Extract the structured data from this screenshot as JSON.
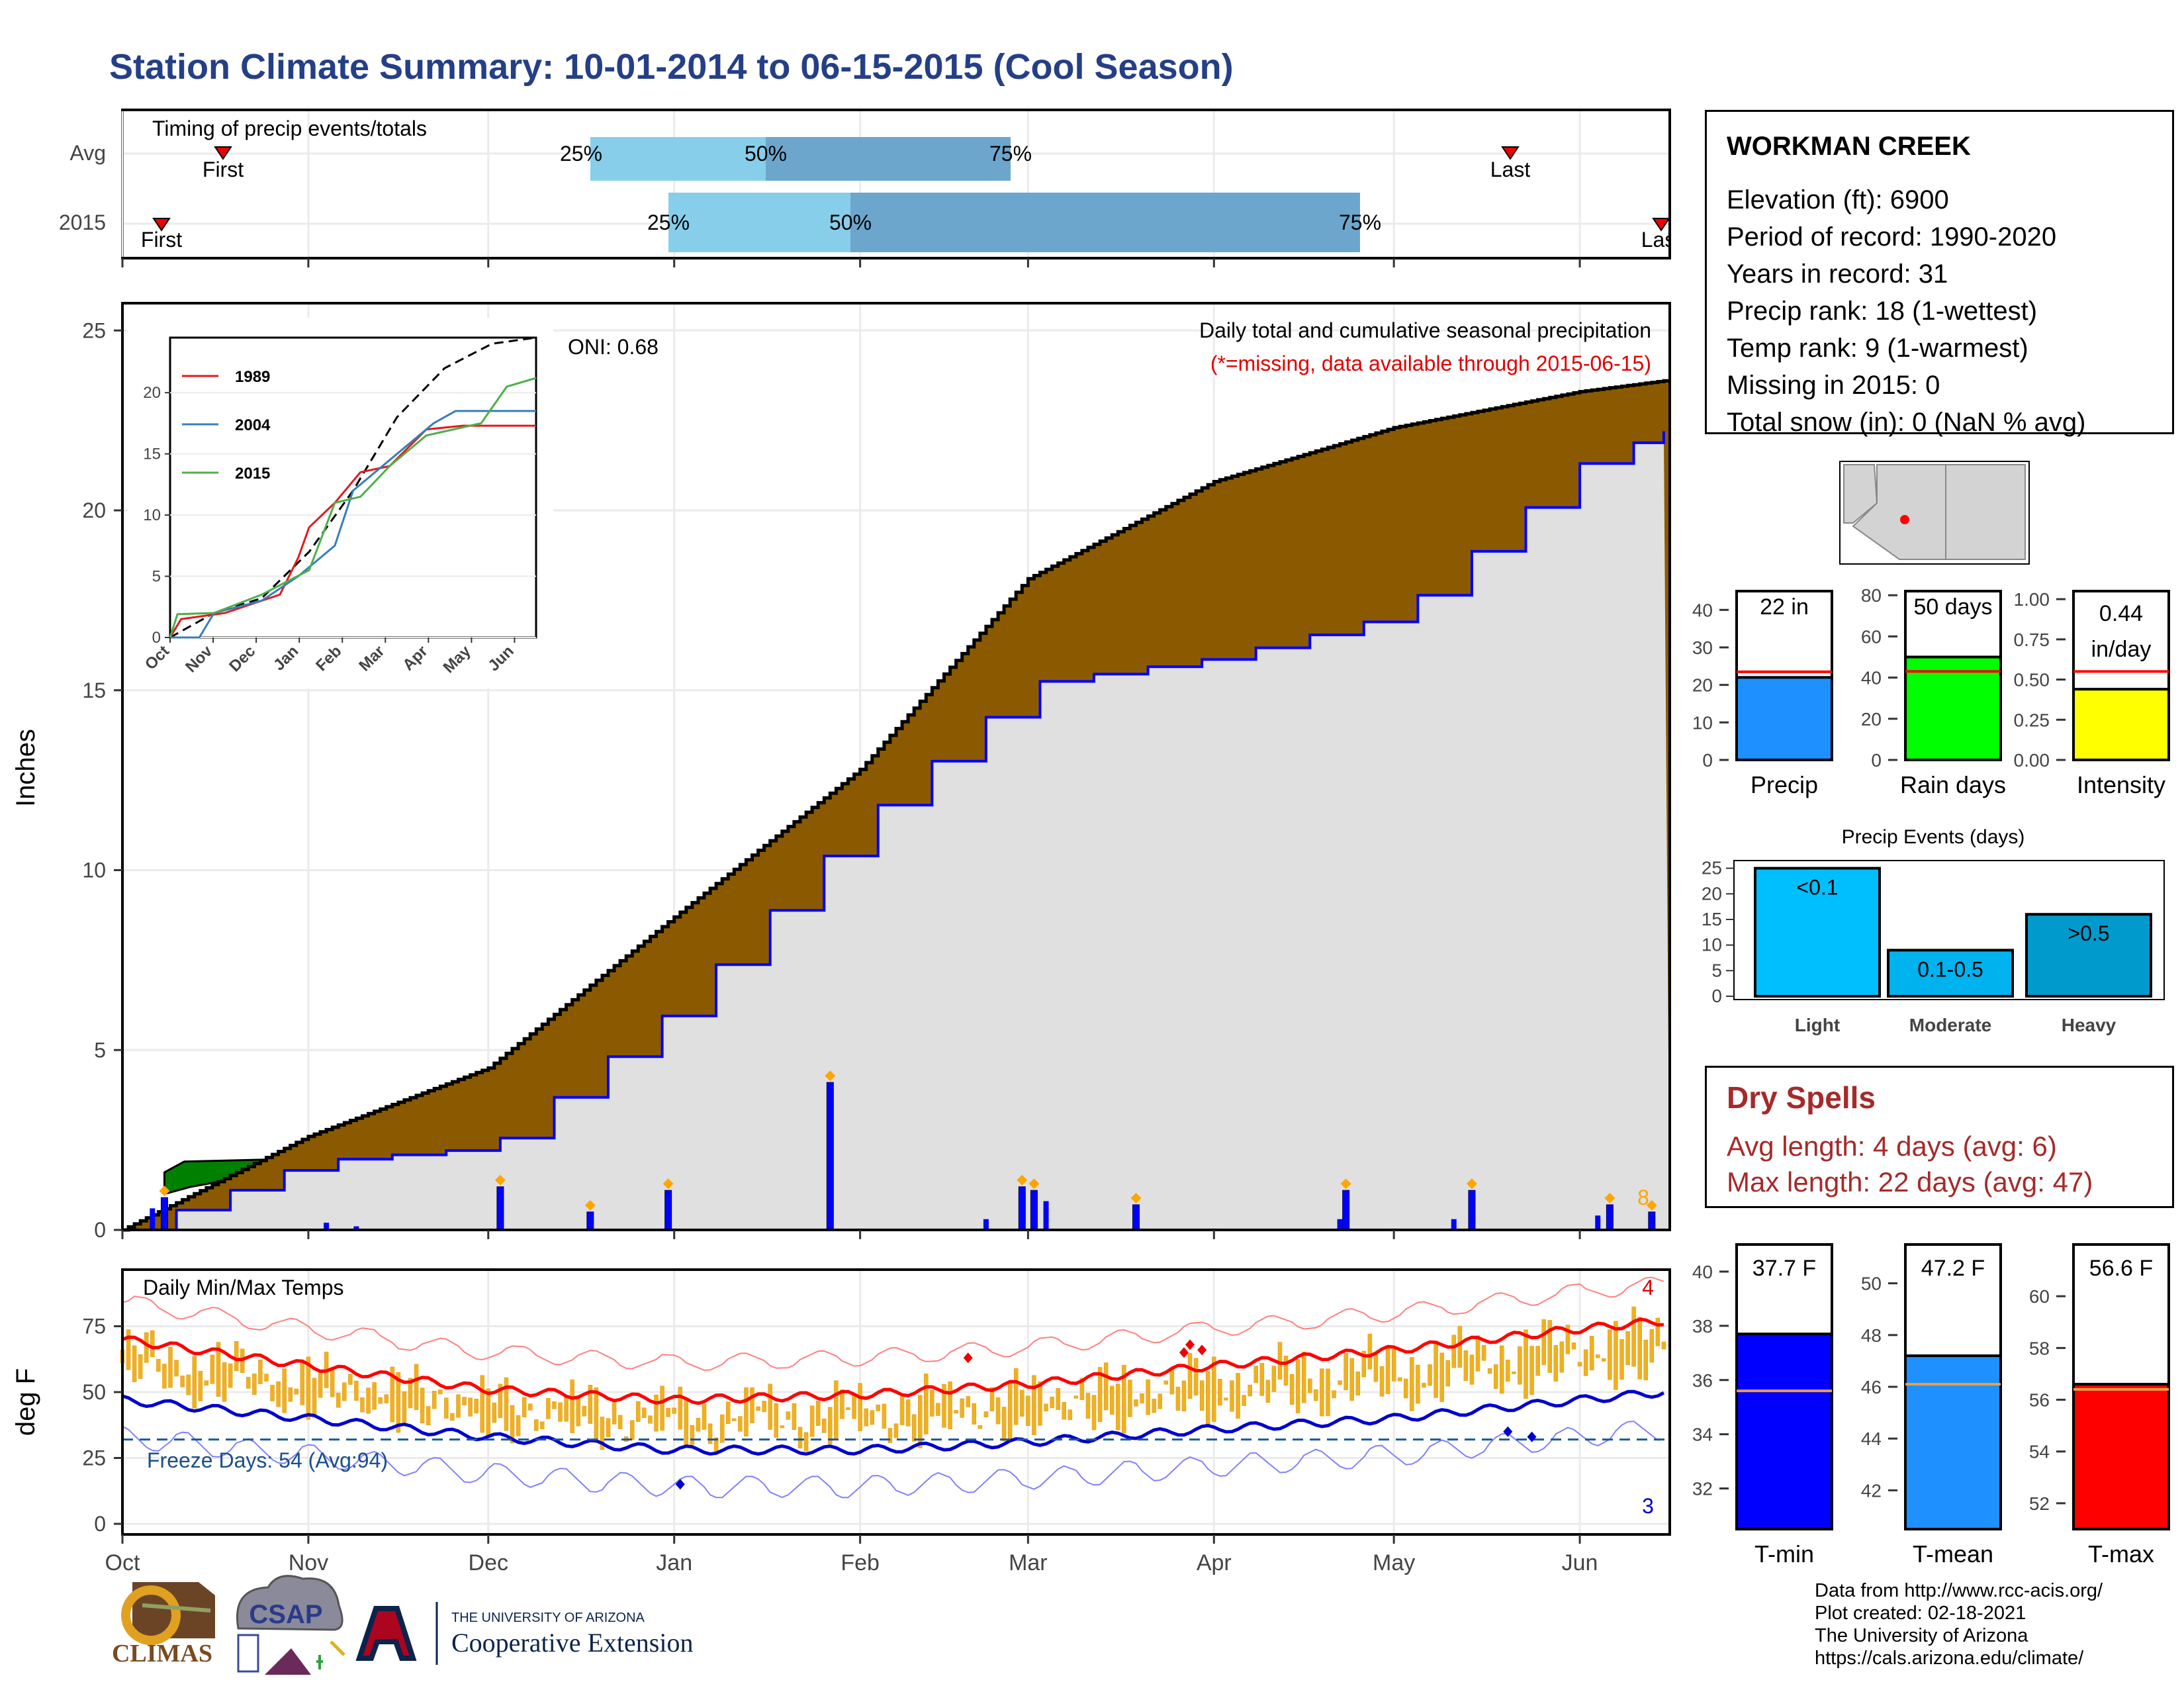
{
  "title": "Station Climate Summary: 10-01-2014 to 06-15-2015 (Cool Season)",
  "colors": {
    "title": "#253f87",
    "cumulative_fill": "#8b5a00",
    "avg_cum_fill": "#e0e0e0",
    "ahead_fill": "#008000",
    "daily_bar": "#0000ff",
    "marker": "#ffa500",
    "temp_bar": "#f0b020",
    "tmax_avg": "#ff0000",
    "tmin_avg": "#0000cd"
  },
  "timing": {
    "label": "Timing of precip events/totals",
    "rows": [
      {
        "label": "Avg",
        "first_label": "First",
        "last_label": "Last",
        "p25": "25%",
        "p50": "50%",
        "p75": "75%"
      },
      {
        "label": "2015",
        "first_label": "First",
        "last_label": "Last",
        "p25": "25%",
        "p50": "50%",
        "p75": "75%"
      }
    ]
  },
  "station": {
    "name": "WORKMAN CREEK",
    "lines": [
      "Elevation (ft): 6900",
      "Period of record: 1990-2020",
      "Years in record: 31",
      "Precip rank: 18 (1-wettest)",
      "Temp rank: 9 (1-warmest)",
      "Missing in 2015: 0",
      "Total snow (in): 0 (NaN % avg)"
    ]
  },
  "precip_panel": {
    "ylabel": "Inches",
    "annotation": "Daily total and cumulative seasonal precipitation",
    "missing_note": "(*=missing, data available through 2015-06-15)",
    "oni": "ONI: 0.68",
    "count_label": "8",
    "yticks": [
      "0",
      "5",
      "10",
      "15",
      "20",
      "25"
    ]
  },
  "inset": {
    "legend": [
      "1989",
      "2004",
      "2015"
    ],
    "yticks": [
      "0",
      "5",
      "10",
      "15",
      "20"
    ],
    "xticks": [
      "Oct",
      "Nov",
      "Dec",
      "Jan",
      "Feb",
      "Mar",
      "Apr",
      "May",
      "Jun"
    ]
  },
  "month_labels": [
    "Oct",
    "Nov",
    "Dec",
    "Jan",
    "Feb",
    "Mar",
    "Apr",
    "May",
    "Jun"
  ],
  "temp_panel": {
    "ylabel": "deg F",
    "label": "Daily Min/Max Temps",
    "freeze": "Freeze Days: 54 (Avg:94)",
    "hi_count": "4",
    "lo_count": "3",
    "yticks": [
      "0",
      "25",
      "50",
      "75"
    ]
  },
  "bars": {
    "precip": {
      "value_label": "22 in",
      "xlabel": "Precip",
      "value": 22,
      "avg": 23.5,
      "ymax": 45,
      "yticks": [
        "0",
        "10",
        "20",
        "30",
        "40"
      ]
    },
    "raindays": {
      "value_label": "50 days",
      "xlabel": "Rain days",
      "value": 50,
      "avg": 43,
      "ymax": 82,
      "yticks": [
        "0",
        "20",
        "40",
        "60",
        "80"
      ]
    },
    "intensity": {
      "value_label": "0.44 in/day",
      "value_line1": "0.44",
      "value_line2": "in/day",
      "xlabel": "Intensity",
      "value": 0.44,
      "avg": 0.55,
      "ymax": 1.05,
      "yticks": [
        "0.00",
        "0.25",
        "0.50",
        "0.75",
        "1.00"
      ]
    }
  },
  "events": {
    "title": "Precip Events (days)",
    "categories": [
      "Light",
      "Moderate",
      "Heavy"
    ],
    "value_labels": [
      "<0.1",
      "0.1-0.5",
      ">0.5"
    ],
    "values": [
      25,
      9,
      16
    ],
    "yticks": [
      "0",
      "5",
      "10",
      "15",
      "20",
      "25"
    ]
  },
  "dry": {
    "title": "Dry Spells",
    "lines": [
      "Avg length: 4 days (avg: 6)",
      "Max length: 22 days (avg: 47)"
    ]
  },
  "temps": {
    "tmin": {
      "value_label": "37.7 F",
      "xlabel": "T-min",
      "value": 37.7,
      "avg": 35.6,
      "ymin": 30.5,
      "ymax": 41,
      "yticks": [
        "32",
        "34",
        "36",
        "38",
        "40"
      ]
    },
    "tmean": {
      "value_label": "47.2 F",
      "xlabel": "T-mean",
      "value": 47.2,
      "avg": 46.1,
      "ymin": 40.5,
      "ymax": 51.5,
      "yticks": [
        "42",
        "44",
        "46",
        "48",
        "50"
      ]
    },
    "tmax": {
      "value_label": "56.6 F",
      "xlabel": "T-max",
      "value": 56.6,
      "avg": 56.4,
      "ymin": 51,
      "ymax": 62,
      "yticks": [
        "52",
        "54",
        "56",
        "58",
        "60"
      ]
    }
  },
  "credits": [
    "Data from http://www.rcc-acis.org/",
    "Plot created: 02-18-2021",
    "The University of Arizona",
    "https://cals.arizona.edu/climate/"
  ],
  "logos": {
    "climas": "CLIMAS",
    "csap": "CSAP",
    "ua_small": "THE UNIVERSITY OF ARIZONA",
    "ua_big": "Cooperative Extension"
  },
  "chart_data": {
    "type": "area",
    "title": "Station Climate Summary: 10-01-2014 to 06-15-2015 (Cool Season)",
    "ylabel": "Inches",
    "ylim": [
      0,
      26
    ],
    "x": [
      "2014-10-01",
      "2014-11-01",
      "2014-12-01",
      "2015-01-01",
      "2015-02-01",
      "2015-03-01",
      "2015-04-01",
      "2015-05-01",
      "2015-06-01",
      "2015-06-15"
    ],
    "series": [
      {
        "values": [
          0,
          2.6,
          4.5,
          8.7,
          12.8,
          18.1,
          20.8,
          22.3,
          23.3,
          23.6
        ]
      },
      {
        "values": [
          0,
          1.9,
          2.3,
          6.2,
          11.4,
          15.2,
          15.9,
          17.1,
          21.3,
          22.2
        ]
      }
    ],
    "daily_precip": [
      {
        "x": "2014-10-08",
        "y": 0.9
      },
      {
        "x": "2014-12-03",
        "y": 1.2
      },
      {
        "x": "2014-12-18",
        "y": 0.5
      },
      {
        "x": "2014-12-31",
        "y": 1.1
      },
      {
        "x": "2015-01-27",
        "y": 4.1
      },
      {
        "x": "2015-02-28",
        "y": 1.2
      },
      {
        "x": "2015-03-02",
        "y": 1.1
      },
      {
        "x": "2015-03-19",
        "y": 0.7
      },
      {
        "x": "2015-04-23",
        "y": 1.1
      },
      {
        "x": "2015-05-14",
        "y": 1.1
      },
      {
        "x": "2015-06-06",
        "y": 0.7
      },
      {
        "x": "2015-06-13",
        "y": 0.5
      }
    ],
    "temps": {
      "ylabel": "deg F",
      "ylim": [
        -5,
        95
      ],
      "tmax_avg": [
        {
          "x": "2014-10-01",
          "y": 70
        },
        {
          "x": "2014-11-01",
          "y": 60
        },
        {
          "x": "2014-12-01",
          "y": 51
        },
        {
          "x": "2015-01-01",
          "y": 47
        },
        {
          "x": "2015-02-01",
          "y": 49
        },
        {
          "x": "2015-03-01",
          "y": 53
        },
        {
          "x": "2015-04-01",
          "y": 60
        },
        {
          "x": "2015-05-01",
          "y": 66
        },
        {
          "x": "2015-06-01",
          "y": 74
        },
        {
          "x": "2015-06-15",
          "y": 77
        }
      ],
      "tmin_avg": [
        {
          "x": "2014-10-01",
          "y": 47
        },
        {
          "x": "2014-11-01",
          "y": 40
        },
        {
          "x": "2014-12-01",
          "y": 33
        },
        {
          "x": "2015-01-01",
          "y": 28
        },
        {
          "x": "2015-02-01",
          "y": 28
        },
        {
          "x": "2015-03-01",
          "y": 31
        },
        {
          "x": "2015-04-01",
          "y": 36
        },
        {
          "x": "2015-05-01",
          "y": 40
        },
        {
          "x": "2015-06-01",
          "y": 47
        },
        {
          "x": "2015-06-15",
          "y": 50
        }
      ],
      "freeze_line": 32
    }
  }
}
